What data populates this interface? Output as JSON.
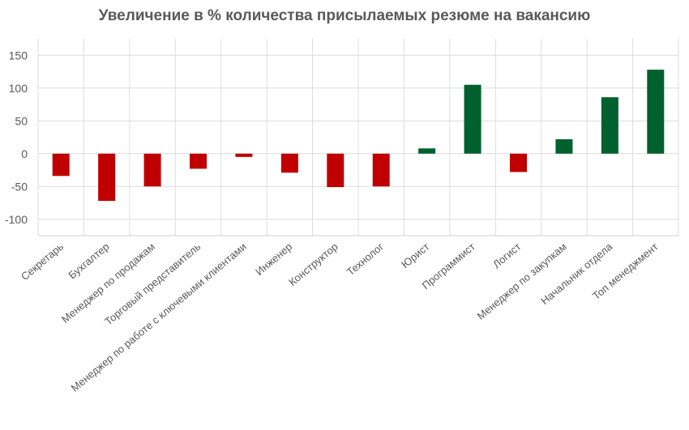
{
  "chart_data": {
    "type": "bar",
    "title": "Увеличение в % количества присылаемых резюме на вакансию",
    "xlabel": "",
    "ylabel": "",
    "ylim": [
      -125,
      175
    ],
    "yticks": [
      150,
      100,
      50,
      0,
      -50,
      -100
    ],
    "grid": true,
    "categories": [
      "Секретарь",
      "Бухгалтер",
      "Менеджер по продажам",
      "Торговый представитель",
      "Менеджер по работе с ключевыми клиентами",
      "Инженер",
      "Конструктор",
      "Технолог",
      "Юрист",
      "Программист",
      "Логист",
      "Менеджер по закупкам",
      "Начальник отдела",
      "Топ менеджмент"
    ],
    "values": [
      -34,
      -72,
      -50,
      -23,
      -5,
      -29,
      -51,
      -50,
      8,
      105,
      -28,
      22,
      86,
      128
    ],
    "colors": {
      "negative": "#c00000",
      "positive": "#00612e",
      "grid": "#dcdcdc",
      "text": "#595959"
    }
  }
}
